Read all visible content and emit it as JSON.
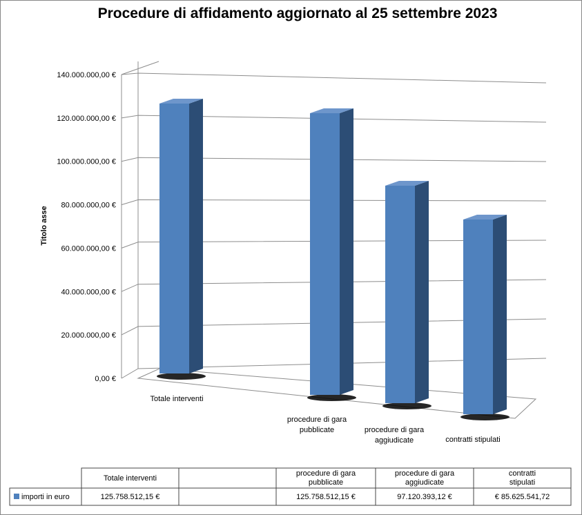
{
  "chart_data": {
    "type": "bar",
    "title": "Procedure di affidamento aggiornato al 25 settembre 2023",
    "ylabel": "Titolo asse",
    "xlabel": "",
    "ylim": [
      0,
      140000000
    ],
    "y_ticks": [
      "0,00 €",
      "20.000.000,00 €",
      "40.000.000,00 €",
      "60.000.000,00 €",
      "80.000.000,00 €",
      "100.000.000,00 €",
      "120.000.000,00 €",
      "140.000.000,00 €"
    ],
    "categories": [
      [
        "Totale interventi"
      ],
      [],
      [
        "procedure di gara",
        "pubblicate"
      ],
      [
        "procedure di gara",
        "aggiudicate"
      ],
      [
        "contratti stipulati"
      ]
    ],
    "series": [
      {
        "name": "importi in euro",
        "values": [
          125758512.15,
          null,
          125758512.15,
          97120393.12,
          85625541.72
        ],
        "color": "#4f81bd"
      }
    ],
    "data_table": {
      "headers": [
        "Totale interventi",
        "",
        "procedure di gara pubblicate",
        "procedure di gara aggiudicate",
        "contratti stipulati"
      ],
      "values": [
        "125.758.512,15 €",
        "",
        "125.758.512,15 €",
        "97.120.393,12 €",
        "€ 85.625.541,72"
      ]
    },
    "grid": true,
    "legend": "data-table"
  }
}
